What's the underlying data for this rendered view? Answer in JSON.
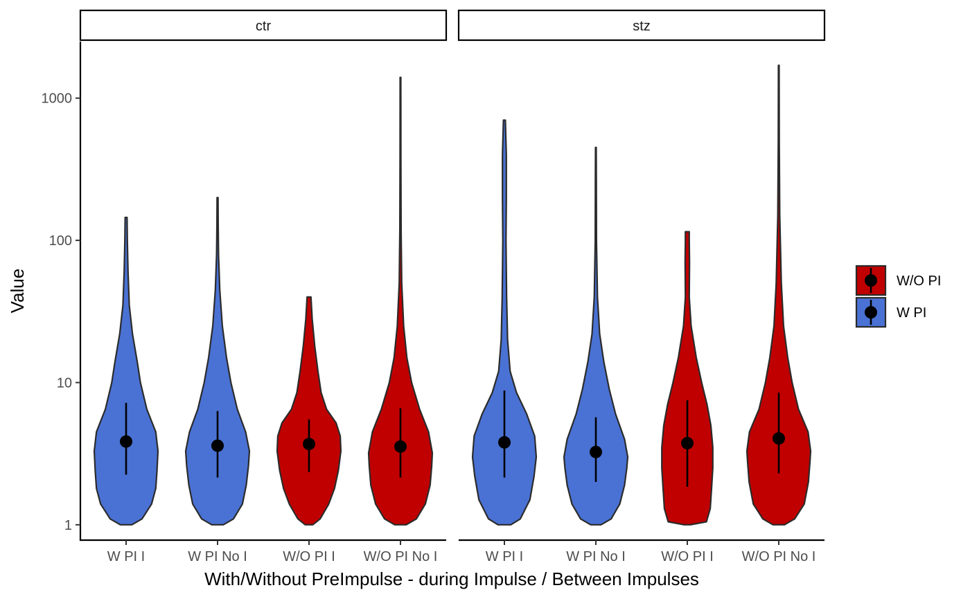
{
  "chart_data": {
    "type": "violin",
    "xlabel": "With/Without PreImpulse - during Impulse / Between Impulses",
    "ylabel": "Value",
    "y_scale": "log10",
    "y_ticks": [
      1,
      10,
      100,
      1000
    ],
    "y_tick_labels": [
      "1",
      "10",
      "100",
      "1000"
    ],
    "ylim": [
      0.78,
      2500
    ],
    "categories": [
      "W PI I",
      "W PI No I",
      "W/O PI I",
      "W/O PI No I"
    ],
    "legend": {
      "position": "right",
      "entries": [
        {
          "label": "W/O PI",
          "color": "#c00000"
        },
        {
          "label": "W PI",
          "color": "#4a72d4"
        }
      ]
    },
    "facets": [
      {
        "label": "ctr",
        "groups": [
          {
            "category": "W PI I",
            "fill_group": "W PI",
            "min": 1.0,
            "max": 145,
            "median": 3.85,
            "lower": 2.25,
            "upper": 7.2,
            "profile": [
              [
                1.0,
                0.18
              ],
              [
                1.1,
                0.5
              ],
              [
                1.4,
                0.8
              ],
              [
                1.8,
                0.93
              ],
              [
                2.4,
                0.97
              ],
              [
                3.3,
                1.0
              ],
              [
                4.5,
                0.93
              ],
              [
                6.5,
                0.65
              ],
              [
                10,
                0.45
              ],
              [
                14,
                0.35
              ],
              [
                22,
                0.2
              ],
              [
                35,
                0.1
              ],
              [
                60,
                0.06
              ],
              [
                100,
                0.04
              ],
              [
                145,
                0.03
              ]
            ]
          },
          {
            "category": "W PI No I",
            "fill_group": "W PI",
            "min": 1.0,
            "max": 200,
            "median": 3.6,
            "lower": 2.15,
            "upper": 6.3,
            "profile": [
              [
                1.0,
                0.18
              ],
              [
                1.1,
                0.5
              ],
              [
                1.4,
                0.78
              ],
              [
                1.9,
                0.9
              ],
              [
                2.6,
                0.97
              ],
              [
                3.3,
                1.0
              ],
              [
                4.5,
                0.88
              ],
              [
                6.5,
                0.62
              ],
              [
                10,
                0.42
              ],
              [
                15,
                0.28
              ],
              [
                25,
                0.15
              ],
              [
                45,
                0.07
              ],
              [
                80,
                0.03
              ],
              [
                130,
                0.02
              ],
              [
                200,
                0.015
              ]
            ]
          },
          {
            "category": "W/O PI I",
            "fill_group": "W/O PI",
            "min": 1.0,
            "max": 40,
            "median": 3.7,
            "lower": 2.35,
            "upper": 5.5,
            "profile": [
              [
                1.0,
                0.12
              ],
              [
                1.1,
                0.35
              ],
              [
                1.4,
                0.62
              ],
              [
                1.8,
                0.8
              ],
              [
                2.4,
                0.92
              ],
              [
                3.3,
                1.0
              ],
              [
                4.2,
                0.98
              ],
              [
                5.2,
                0.85
              ],
              [
                6.5,
                0.55
              ],
              [
                8.5,
                0.38
              ],
              [
                12,
                0.28
              ],
              [
                18,
                0.18
              ],
              [
                28,
                0.1
              ],
              [
                40,
                0.06
              ]
            ]
          },
          {
            "category": "W/O PI No I",
            "fill_group": "W/O PI",
            "min": 1.0,
            "max": 1400,
            "median": 3.55,
            "lower": 2.15,
            "upper": 6.6,
            "profile": [
              [
                1.0,
                0.18
              ],
              [
                1.1,
                0.5
              ],
              [
                1.4,
                0.78
              ],
              [
                1.9,
                0.93
              ],
              [
                2.6,
                0.98
              ],
              [
                3.2,
                1.0
              ],
              [
                4.5,
                0.88
              ],
              [
                6.5,
                0.6
              ],
              [
                10,
                0.35
              ],
              [
                15,
                0.2
              ],
              [
                25,
                0.1
              ],
              [
                50,
                0.04
              ],
              [
                120,
                0.02
              ],
              [
                400,
                0.012
              ],
              [
                1400,
                0.01
              ]
            ]
          }
        ]
      },
      {
        "label": "stz",
        "groups": [
          {
            "category": "W PI I",
            "fill_group": "W PI",
            "min": 1.0,
            "max": 700,
            "median": 3.8,
            "lower": 2.15,
            "upper": 8.8,
            "profile": [
              [
                1.0,
                0.2
              ],
              [
                1.1,
                0.5
              ],
              [
                1.5,
                0.8
              ],
              [
                2.2,
                0.93
              ],
              [
                3.0,
                1.0
              ],
              [
                4.2,
                0.95
              ],
              [
                6.0,
                0.7
              ],
              [
                8.5,
                0.38
              ],
              [
                12,
                0.18
              ],
              [
                20,
                0.1
              ],
              [
                40,
                0.07
              ],
              [
                100,
                0.05
              ],
              [
                200,
                0.06
              ],
              [
                400,
                0.06
              ],
              [
                700,
                0.03
              ]
            ]
          },
          {
            "category": "W PI No I",
            "fill_group": "W PI",
            "min": 1.0,
            "max": 450,
            "median": 3.25,
            "lower": 2.0,
            "upper": 5.7,
            "profile": [
              [
                1.0,
                0.16
              ],
              [
                1.1,
                0.48
              ],
              [
                1.4,
                0.75
              ],
              [
                1.9,
                0.9
              ],
              [
                2.5,
                0.97
              ],
              [
                3.0,
                1.0
              ],
              [
                4.0,
                0.9
              ],
              [
                6.0,
                0.62
              ],
              [
                9,
                0.42
              ],
              [
                14,
                0.25
              ],
              [
                22,
                0.12
              ],
              [
                40,
                0.05
              ],
              [
                100,
                0.02
              ],
              [
                250,
                0.015
              ],
              [
                450,
                0.01
              ]
            ]
          },
          {
            "category": "W/O PI I",
            "fill_group": "W/O PI",
            "min": 1.0,
            "max": 115,
            "median": 3.75,
            "lower": 1.85,
            "upper": 7.5,
            "profile": [
              [
                1.0,
                0.1
              ],
              [
                1.05,
                0.6
              ],
              [
                1.3,
                0.72
              ],
              [
                1.8,
                0.76
              ],
              [
                2.5,
                0.8
              ],
              [
                3.5,
                0.8
              ],
              [
                5.0,
                0.74
              ],
              [
                7.0,
                0.62
              ],
              [
                10,
                0.45
              ],
              [
                15,
                0.28
              ],
              [
                25,
                0.12
              ],
              [
                40,
                0.06
              ],
              [
                70,
                0.07
              ],
              [
                100,
                0.06
              ],
              [
                115,
                0.06
              ]
            ]
          },
          {
            "category": "W/O PI No I",
            "fill_group": "W/O PI",
            "min": 1.0,
            "max": 1700,
            "median": 4.05,
            "lower": 2.3,
            "upper": 8.5,
            "profile": [
              [
                1.0,
                0.18
              ],
              [
                1.1,
                0.5
              ],
              [
                1.4,
                0.8
              ],
              [
                2.0,
                0.93
              ],
              [
                2.8,
                0.98
              ],
              [
                3.3,
                1.0
              ],
              [
                4.5,
                0.92
              ],
              [
                6.5,
                0.62
              ],
              [
                10,
                0.42
              ],
              [
                15,
                0.28
              ],
              [
                25,
                0.15
              ],
              [
                50,
                0.08
              ],
              [
                150,
                0.03
              ],
              [
                500,
                0.015
              ],
              [
                1700,
                0.01
              ]
            ]
          }
        ]
      }
    ]
  }
}
